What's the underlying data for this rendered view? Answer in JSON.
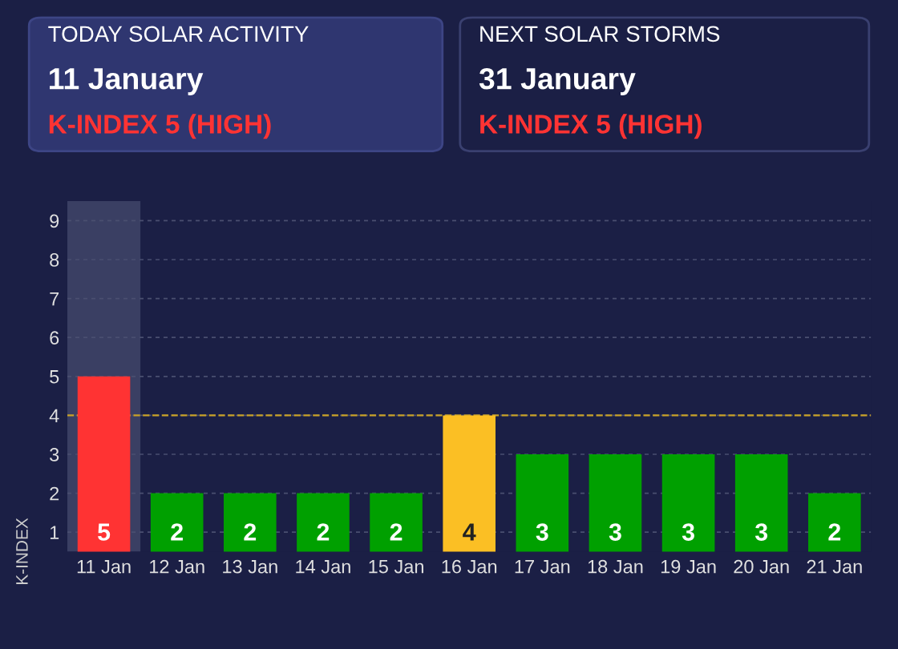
{
  "chart_data": [
    {
      "type": "other",
      "annotations": [
        "TODAY SOLAR ACTIVITY",
        "11 January",
        "K-INDEX 5 (HIGH)"
      ]
    },
    {
      "type": "other",
      "annotations": [
        "NEXT SOLAR STORMS",
        "31 January",
        "K-INDEX 5 (HIGH)"
      ]
    },
    {
      "type": "bar",
      "ylabel": "K-INDEX",
      "categories": [
        "11 Jan",
        "12 Jan",
        "13 Jan",
        "14 Jan",
        "15 Jan",
        "16 Jan",
        "17 Jan",
        "18 Jan",
        "19 Jan",
        "20 Jan",
        "21 Jan"
      ],
      "values": [
        5,
        2,
        2,
        2,
        2,
        4,
        3,
        3,
        3,
        3,
        2
      ],
      "colors": [
        "#ff3333",
        "#00a000",
        "#00a000",
        "#00a000",
        "#00a000",
        "#fbbf24",
        "#00a000",
        "#00a000",
        "#00a000",
        "#00a000",
        "#00a000"
      ],
      "data_labels": true,
      "ylim": [
        0.5,
        9.5
      ],
      "yticks": [
        1,
        2,
        3,
        4,
        5,
        6,
        7,
        8,
        9
      ],
      "grid": "y",
      "ref_lines": [
        {
          "axis": "y",
          "value": 4,
          "color": "#c9a227",
          "line_style": "dashed"
        }
      ],
      "bands": [
        {
          "axis": "x",
          "from": "11 Jan",
          "to": "11 Jan",
          "color": "#3a3f63"
        }
      ]
    }
  ]
}
